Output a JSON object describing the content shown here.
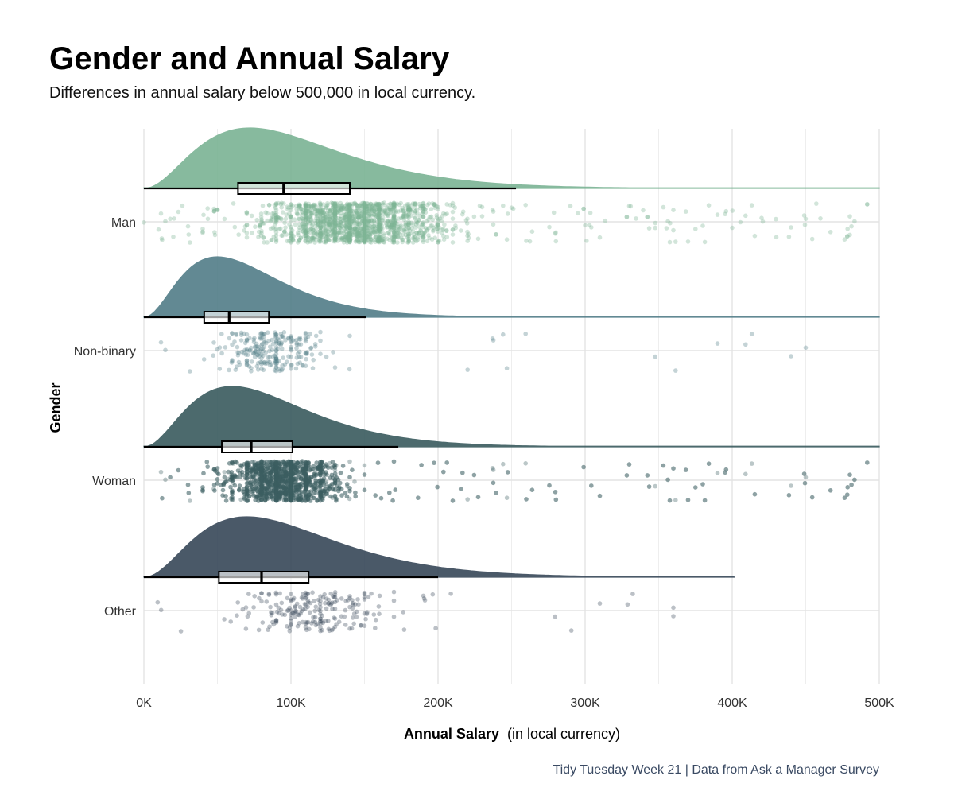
{
  "title": "Gender and Annual Salary",
  "subtitle": "Differences in annual salary below 500,000 in local currency.",
  "caption": "Tidy Tuesday Week 21 | Data from Ask a Manager Survey",
  "chart_data": {
    "type": "raincloud",
    "xlabel_bold": "Annual Salary",
    "xlabel_rest": "(in local currency)",
    "ylabel": "Gender",
    "xlim": [
      0,
      500000
    ],
    "x_ticks": [
      0,
      100000,
      200000,
      300000,
      400000,
      500000
    ],
    "x_tick_labels": [
      "0K",
      "100K",
      "200K",
      "300K",
      "400K",
      "500K"
    ],
    "grid": true,
    "categories": [
      "Man",
      "Non-binary",
      "Woman",
      "Other"
    ],
    "series": [
      {
        "name": "Man",
        "color": "#7db596",
        "box": {
          "q1": 64000,
          "median": 95000,
          "q3": 140000,
          "whisker_low": 0,
          "whisker_high": 253000
        },
        "density_peak_x": 72000,
        "point_range": [
          0,
          500000
        ]
      },
      {
        "name": "Non-binary",
        "color": "#55808a",
        "box": {
          "q1": 41000,
          "median": 58000,
          "q3": 85000,
          "whisker_low": 0,
          "whisker_high": 151000
        },
        "density_peak_x": 50000,
        "point_range": [
          0,
          500000
        ]
      },
      {
        "name": "Woman",
        "color": "#3d5e61",
        "box": {
          "q1": 53000,
          "median": 73000,
          "q3": 101000,
          "whisker_low": 0,
          "whisker_high": 173000
        },
        "density_peak_x": 60000,
        "point_range": [
          0,
          500000
        ]
      },
      {
        "name": "Other",
        "color": "#3b4b5c",
        "box": {
          "q1": 51000,
          "median": 80000,
          "q3": 112000,
          "whisker_low": 0,
          "whisker_high": 200000
        },
        "density_peak_x": 70000,
        "point_range": [
          0,
          402000
        ]
      }
    ]
  }
}
